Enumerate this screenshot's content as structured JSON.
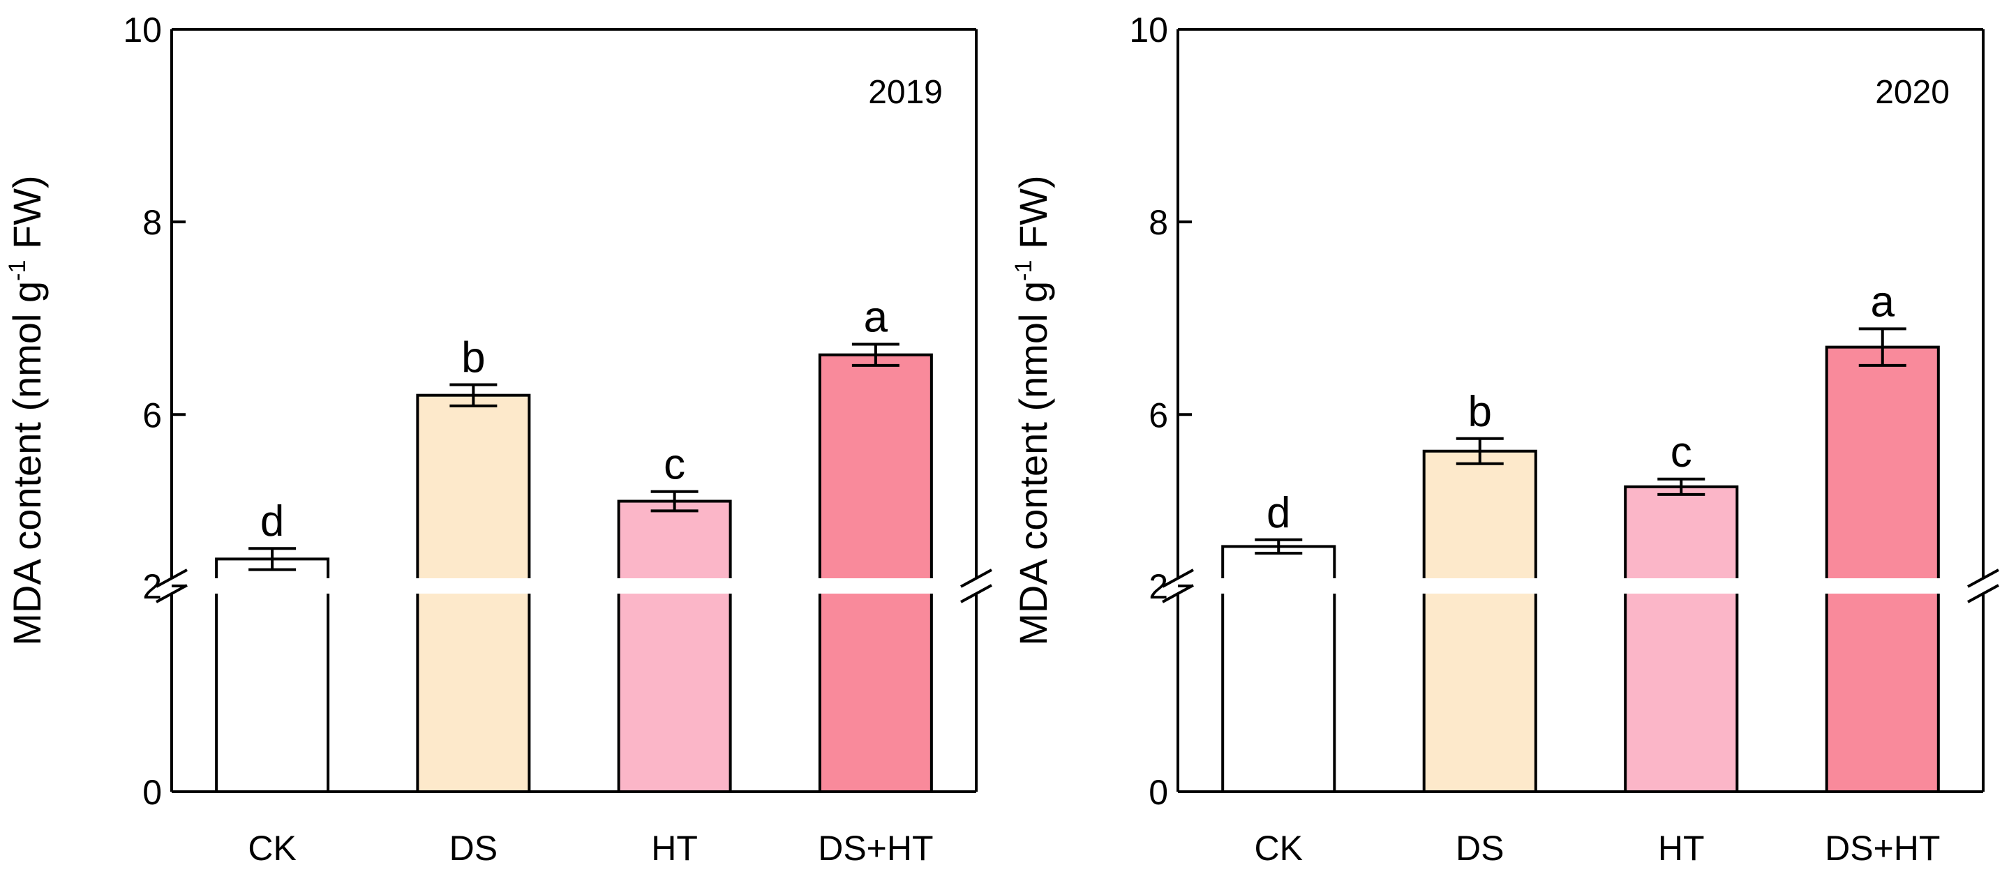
{
  "chart_data": [
    {
      "type": "bar",
      "panel_label": "2019",
      "categories": [
        "CK",
        "DS",
        "HT",
        "DS+HT"
      ],
      "values": [
        4.5,
        6.2,
        5.1,
        6.62
      ],
      "errors": [
        0.11,
        0.11,
        0.1,
        0.11
      ],
      "significance": [
        "d",
        "b",
        "c",
        "a"
      ],
      "colors": [
        "#ffffff",
        "#fde9cb",
        "#fbb6c8",
        "#f98a9b"
      ],
      "ylabel": {
        "text": "MDA content (nmol g",
        "superscript": "-1",
        "suffix": " FW)"
      },
      "ylim": [
        0,
        10
      ],
      "y_axis_break": [
        2,
        4.3
      ],
      "y_ticks": [
        "0",
        "2",
        "6",
        "8",
        "10"
      ]
    },
    {
      "type": "bar",
      "panel_label": "2020",
      "categories": [
        "CK",
        "DS",
        "HT",
        "DS+HT"
      ],
      "values": [
        4.63,
        5.62,
        5.25,
        6.7
      ],
      "errors": [
        0.07,
        0.13,
        0.08,
        0.19
      ],
      "significance": [
        "d",
        "b",
        "c",
        "a"
      ],
      "colors": [
        "#ffffff",
        "#fde9cb",
        "#fbb6c8",
        "#f98a9b"
      ],
      "ylabel": {
        "text": "MDA content (nmol g",
        "superscript": "-1",
        "suffix": " FW)"
      },
      "ylim": [
        0,
        10
      ],
      "y_axis_break": [
        2,
        4.3
      ],
      "y_ticks": [
        "0",
        "2",
        "6",
        "8",
        "10"
      ]
    }
  ]
}
